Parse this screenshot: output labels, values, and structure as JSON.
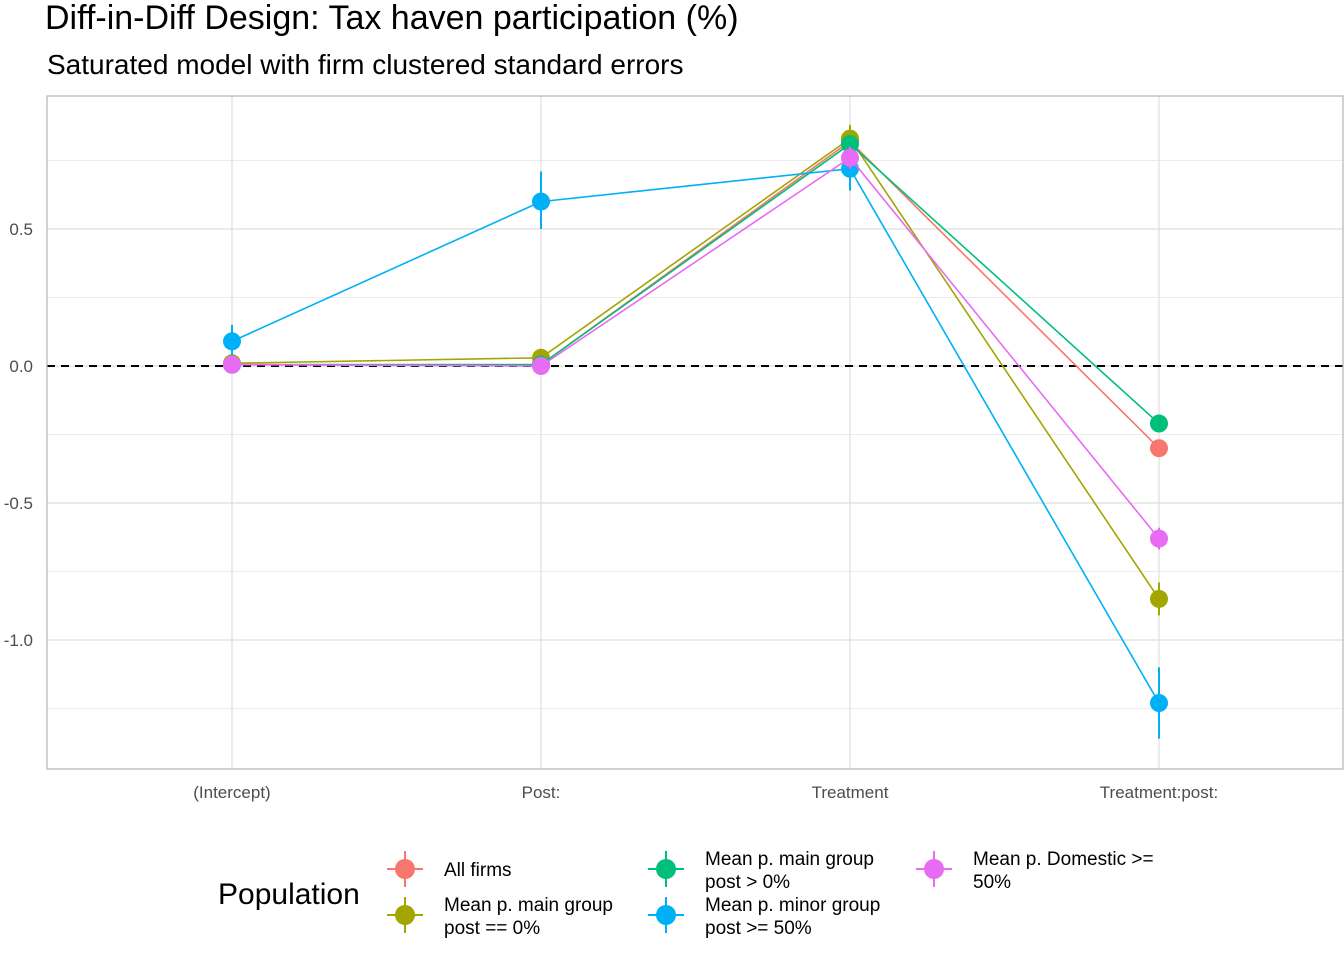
{
  "chart_data": {
    "type": "line",
    "title": "Diff-in-Diff Design: Tax haven participation (%)",
    "subtitle": "Saturated model with firm clustered standard errors",
    "xlabel": "",
    "ylabel": "",
    "categories": [
      "(Intercept)",
      "Post:",
      "Treatment",
      "Treatment:post:"
    ],
    "ylim": [
      -1.47,
      0.98
    ],
    "yticks": [
      0.5,
      0.0,
      -0.5,
      -1.0
    ],
    "ytick_labels": [
      "0.5",
      "0.0",
      "-0.5",
      "-1.0"
    ],
    "reference_line": {
      "y": 0.0,
      "style": "dashed"
    },
    "grid": true,
    "legend": {
      "title": "Population",
      "position": "bottom"
    },
    "series": [
      {
        "name": "All firms",
        "color": "#F8766D",
        "values": [
          0.005,
          0.005,
          0.82,
          -0.3
        ],
        "err_low": [
          -0.01,
          -0.01,
          0.79,
          -0.33
        ],
        "err_high": [
          0.02,
          0.02,
          0.85,
          -0.27
        ]
      },
      {
        "name": "Mean p. main group post == 0%",
        "color": "#A3A500",
        "values": [
          0.01,
          0.03,
          0.83,
          -0.85
        ],
        "err_low": [
          -0.01,
          0.01,
          0.78,
          -0.91
        ],
        "err_high": [
          0.03,
          0.05,
          0.88,
          -0.79
        ]
      },
      {
        "name": "Mean p. main group post > 0%",
        "color": "#00BF7D",
        "values": [
          0.005,
          0.005,
          0.81,
          -0.21
        ],
        "err_low": [
          -0.01,
          -0.01,
          0.78,
          -0.24
        ],
        "err_high": [
          0.02,
          0.02,
          0.84,
          -0.18
        ]
      },
      {
        "name": "Mean p. minor group post >= 50%",
        "color": "#00B0F6",
        "values": [
          0.09,
          0.6,
          0.72,
          -1.23
        ],
        "err_low": [
          0.03,
          0.5,
          0.64,
          -1.36
        ],
        "err_high": [
          0.15,
          0.71,
          0.8,
          -1.1
        ]
      },
      {
        "name": "Mean p. Domestic >= 50%",
        "color": "#E76BF3",
        "values": [
          0.005,
          0.0,
          0.76,
          -0.63
        ],
        "err_low": [
          -0.01,
          -0.01,
          0.72,
          -0.67
        ],
        "err_high": [
          0.02,
          0.01,
          0.8,
          -0.59
        ]
      }
    ]
  },
  "legend_display": [
    {
      "lines": [
        "All firms"
      ]
    },
    {
      "lines": [
        "Mean p. main group",
        "post == 0%"
      ]
    },
    {
      "lines": [
        "Mean p. main group",
        "post > 0%"
      ]
    },
    {
      "lines": [
        "Mean p. minor group",
        "post >= 50%"
      ]
    },
    {
      "lines": [
        "Mean p. Domestic >=",
        "50%"
      ]
    }
  ]
}
